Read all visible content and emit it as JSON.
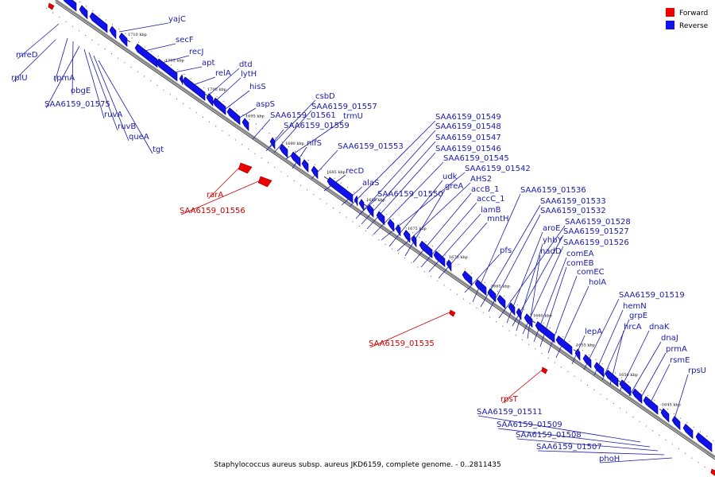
{
  "caption": "Staphylococcus aureus subsp. aureus JKD6159, complete genome. - 0..2811435",
  "legend": {
    "forward_label": "Forward",
    "reverse_label": "Reverse",
    "forward_color": "#ee0000",
    "reverse_color": "#1111ee"
  },
  "ticks": [
    "1710 kbp",
    "1705 kbp",
    "1700 kbp",
    "1695 kbp",
    "1690 kbp",
    "1685 kbp",
    "1680 kbp",
    "1675 kbp",
    "1670 kbp",
    "1665 kbp",
    "1660 kbp",
    "1655 kbp",
    "1650 kbp",
    "1645 kbp"
  ],
  "reverse_genes": [
    "yajC",
    "secF",
    "recJ",
    "apt",
    "relA",
    "dtd",
    "lytH",
    "hisS",
    "aspS",
    "csbD",
    "SAA6159_01557",
    "SAA6159_01561",
    "trmU",
    "SAA6159_01559",
    "nifS",
    "SAA6159_01553",
    "recD",
    "alaS",
    "SAA6159_01549",
    "SAA6159_01548",
    "SAA6159_01547",
    "SAA6159_01546",
    "SAA6159_01545",
    "SAA6159_01542",
    "udk",
    "AHS2",
    "greA",
    "SAA6159_01550",
    "accB_1",
    "accC_1",
    "lamB",
    "mntH",
    "SAA6159_01536",
    "SAA6159_01533",
    "SAA6159_01532",
    "pfs",
    "SAA6159_01528",
    "aroE",
    "SAA6159_01527",
    "yhbY",
    "SAA6159_01526",
    "nadD",
    "comEA",
    "comEB",
    "comEC",
    "holA",
    "SAA6159_01519",
    "hemN",
    "grpE",
    "lepA",
    "hrcA",
    "dnaK",
    "dnaJ",
    "prmA",
    "rsmE",
    "rpsU",
    "mreD",
    "rplU",
    "rpmA",
    "obgE",
    "SAA6159_01575",
    "ruvA",
    "ruvB",
    "queA",
    "tgt",
    "SAA6159_01511",
    "SAA6159_01509",
    "SAA6159_01508",
    "SAA6159_01507",
    "phoH"
  ],
  "forward_genes": [
    "rarA",
    "SAA6159_01556",
    "SAA6159_01535",
    "rpsT"
  ]
}
